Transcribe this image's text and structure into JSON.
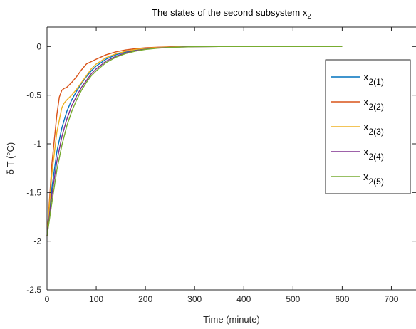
{
  "chart_data": {
    "type": "line",
    "title": "The states of the second subsystem x",
    "title_subscript": "2",
    "xlabel": "Time (minute)",
    "ylabel": "δ T (°C)",
    "xlim": [
      0,
      750
    ],
    "ylim": [
      -2.5,
      0.2
    ],
    "xticks": [
      0,
      100,
      200,
      300,
      400,
      500,
      600,
      700
    ],
    "yticks": [
      0,
      -0.5,
      -1,
      -1.5,
      -2,
      -2.5
    ],
    "xtick_labels": [
      "0",
      "100",
      "200",
      "300",
      "400",
      "500",
      "600",
      "700"
    ],
    "ytick_labels": [
      "0",
      "-0.5",
      "-1",
      "-1.5",
      "-2",
      "-2.5"
    ],
    "grid": false,
    "legend_position": "right",
    "series": [
      {
        "name": "x",
        "subscript": "2(1)",
        "color": "#0072BD",
        "x": [
          0,
          10,
          20,
          30,
          40,
          50,
          60,
          70,
          80,
          90,
          100,
          120,
          140,
          160,
          180,
          200,
          225,
          250,
          275,
          300,
          350,
          400,
          450,
          500,
          550,
          600
        ],
        "y": [
          -1.95,
          -1.45,
          -1.08,
          -0.84,
          -0.67,
          -0.55,
          -0.46,
          -0.38,
          -0.31,
          -0.25,
          -0.2,
          -0.13,
          -0.085,
          -0.055,
          -0.035,
          -0.022,
          -0.012,
          -0.006,
          -0.003,
          -0.001,
          0,
          0,
          0,
          0,
          0,
          0
        ]
      },
      {
        "name": "x",
        "subscript": "2(2)",
        "color": "#D95319",
        "x": [
          0,
          10,
          20,
          25,
          30,
          35,
          40,
          50,
          60,
          70,
          80,
          90,
          100,
          120,
          140,
          160,
          180,
          200,
          225,
          250,
          275,
          300,
          350,
          400,
          450,
          500,
          550,
          600
        ],
        "y": [
          -1.95,
          -1.2,
          -0.7,
          -0.52,
          -0.45,
          -0.43,
          -0.42,
          -0.37,
          -0.31,
          -0.24,
          -0.18,
          -0.155,
          -0.13,
          -0.085,
          -0.055,
          -0.035,
          -0.022,
          -0.013,
          -0.007,
          -0.003,
          -0.001,
          0,
          0,
          0,
          0,
          0,
          0,
          0
        ]
      },
      {
        "name": "x",
        "subscript": "2(3)",
        "color": "#EDB120",
        "x": [
          0,
          10,
          20,
          30,
          35,
          40,
          50,
          60,
          70,
          80,
          90,
          100,
          120,
          140,
          160,
          180,
          200,
          225,
          250,
          275,
          300,
          350,
          400,
          450,
          500,
          550,
          600
        ],
        "y": [
          -1.95,
          -1.3,
          -0.88,
          -0.63,
          -0.58,
          -0.55,
          -0.5,
          -0.44,
          -0.37,
          -0.3,
          -0.23,
          -0.18,
          -0.115,
          -0.075,
          -0.048,
          -0.03,
          -0.019,
          -0.01,
          -0.005,
          -0.002,
          -0.001,
          0,
          0,
          0,
          0,
          0,
          0
        ]
      },
      {
        "name": "x",
        "subscript": "2(4)",
        "color": "#7E2F8E",
        "x": [
          0,
          10,
          20,
          30,
          40,
          50,
          60,
          70,
          80,
          90,
          100,
          120,
          140,
          160,
          180,
          200,
          225,
          250,
          275,
          300,
          350,
          400,
          450,
          500,
          550,
          600
        ],
        "y": [
          -1.95,
          -1.52,
          -1.18,
          -0.93,
          -0.75,
          -0.61,
          -0.51,
          -0.42,
          -0.35,
          -0.28,
          -0.23,
          -0.15,
          -0.1,
          -0.065,
          -0.042,
          -0.027,
          -0.015,
          -0.008,
          -0.004,
          -0.002,
          0,
          0,
          0,
          0,
          0,
          0
        ]
      },
      {
        "name": "x",
        "subscript": "2(5)",
        "color": "#77AC30",
        "x": [
          0,
          10,
          20,
          30,
          40,
          50,
          60,
          70,
          80,
          90,
          100,
          120,
          140,
          160,
          180,
          200,
          225,
          250,
          275,
          300,
          350,
          400,
          450,
          500,
          550,
          600
        ],
        "y": [
          -1.95,
          -1.6,
          -1.27,
          -1.02,
          -0.82,
          -0.67,
          -0.55,
          -0.45,
          -0.37,
          -0.3,
          -0.25,
          -0.165,
          -0.11,
          -0.072,
          -0.047,
          -0.03,
          -0.017,
          -0.009,
          -0.005,
          -0.002,
          0,
          0,
          0,
          0,
          0,
          0
        ]
      }
    ]
  }
}
